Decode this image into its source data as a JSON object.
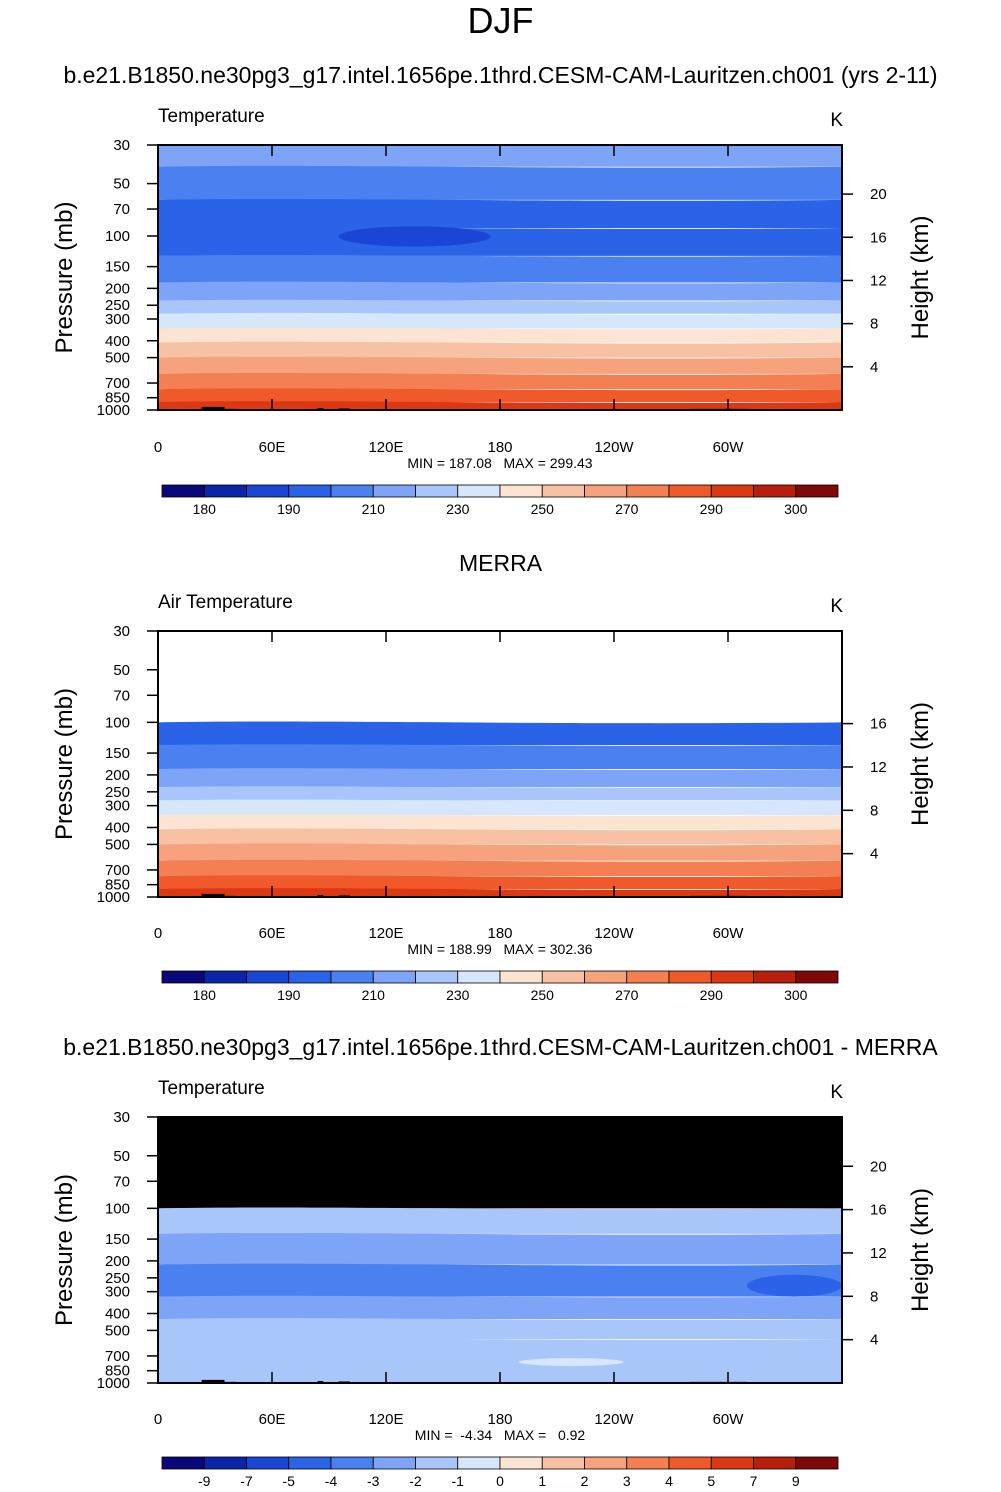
{
  "page": {
    "title": "DJF",
    "case1_title": "b.e21.B1850.ne30pg3_g17.intel.1656pe.1thrd.CESM-CAM-Lauritzen.ch001 (yrs 2-11)",
    "case2_title": "MERRA",
    "diff_title": "b.e21.B1850.ne30pg3_g17.intel.1656pe.1thrd.CESM-CAM-Lauritzen.ch001 - MERRA"
  },
  "colors": {
    "abs_palette": [
      "#08087a",
      "#0a25a8",
      "#1a46d6",
      "#2a62e8",
      "#4a80ef",
      "#7da4f6",
      "#a9c6fb",
      "#d6e6fb",
      "#fbe4d2",
      "#f8c1a4",
      "#f6a27d",
      "#f47f53",
      "#f05a2a",
      "#dd3814",
      "#b71f0c",
      "#7f0808"
    ],
    "diff_palette": [
      "#08087a",
      "#0a25a8",
      "#1a46d6",
      "#2a62e8",
      "#4a80ef",
      "#7da4f6",
      "#a9c6fb",
      "#d6e6fb",
      "#fbe4d2",
      "#f8c1a4",
      "#f6a27d",
      "#f47f53",
      "#f05a2a",
      "#dd3814",
      "#b71f0c",
      "#7f0808"
    ],
    "mask": "#000000"
  },
  "chart_data": [
    {
      "type": "heatmap",
      "panel": "top",
      "left_title": "Temperature",
      "units": "K",
      "ylabel": "Pressure (mb)",
      "right_label": "Height (km)",
      "y_ticks": [
        30,
        50,
        70,
        100,
        150,
        200,
        250,
        300,
        400,
        500,
        700,
        850,
        1000
      ],
      "right_ticks": [
        "20",
        "16",
        "12",
        "8",
        "4"
      ],
      "right_tick_values": [
        20,
        16,
        12,
        8,
        4
      ],
      "x_ticks": [
        "0",
        "60E",
        "120E",
        "180",
        "120W",
        "60W"
      ],
      "xlim": [
        0,
        360
      ],
      "ylim": [
        30,
        1000
      ],
      "stats": "MIN = 187.08   MAX = 299.43",
      "colorbar_labels": [
        "180",
        "190",
        "210",
        "230",
        "250",
        "270",
        "290",
        "300"
      ],
      "levels": [
        {
          "p_top": 30,
          "p_bottom": 40,
          "color_index": 5
        },
        {
          "p_top": 40,
          "p_bottom": 62,
          "color_index": 4
        },
        {
          "p_top": 62,
          "p_bottom": 90,
          "color_index": 3
        },
        {
          "p_top": 90,
          "p_bottom": 130,
          "color_index": 3
        },
        {
          "p_top": 130,
          "p_bottom": 185,
          "color_index": 4
        },
        {
          "p_top": 185,
          "p_bottom": 235,
          "color_index": 5
        },
        {
          "p_top": 235,
          "p_bottom": 280,
          "color_index": 6
        },
        {
          "p_top": 280,
          "p_bottom": 340,
          "color_index": 7
        },
        {
          "p_top": 340,
          "p_bottom": 410,
          "color_index": 8
        },
        {
          "p_top": 410,
          "p_bottom": 500,
          "color_index": 9
        },
        {
          "p_top": 500,
          "p_bottom": 620,
          "color_index": 10
        },
        {
          "p_top": 620,
          "p_bottom": 760,
          "color_index": 11
        },
        {
          "p_top": 760,
          "p_bottom": 900,
          "color_index": 12
        },
        {
          "p_top": 900,
          "p_bottom": 1000,
          "color_index": 13
        }
      ],
      "features": [
        {
          "kind": "cold_core",
          "lon_start": 95,
          "lon_end": 175,
          "p_top": 88,
          "p_bottom": 115,
          "color_index": 2
        }
      ]
    },
    {
      "type": "heatmap",
      "panel": "middle",
      "left_title": "Air Temperature",
      "units": "K",
      "ylabel": "Pressure (mb)",
      "right_label": "Height (km)",
      "y_ticks": [
        30,
        50,
        70,
        100,
        150,
        200,
        250,
        300,
        400,
        500,
        700,
        850,
        1000
      ],
      "right_ticks": [
        "16",
        "12",
        "8",
        "4"
      ],
      "right_tick_values": [
        16,
        12,
        8,
        4
      ],
      "x_ticks": [
        "0",
        "60E",
        "120E",
        "180",
        "120W",
        "60W"
      ],
      "xlim": [
        0,
        360
      ],
      "ylim": [
        30,
        1000
      ],
      "data_top_p": 100,
      "stats": "MIN = 188.99   MAX = 302.36",
      "colorbar_labels": [
        "180",
        "190",
        "210",
        "230",
        "250",
        "270",
        "290",
        "300"
      ],
      "levels": [
        {
          "p_top": 100,
          "p_bottom": 135,
          "color_index": 3
        },
        {
          "p_top": 135,
          "p_bottom": 185,
          "color_index": 4
        },
        {
          "p_top": 185,
          "p_bottom": 235,
          "color_index": 5
        },
        {
          "p_top": 235,
          "p_bottom": 280,
          "color_index": 6
        },
        {
          "p_top": 280,
          "p_bottom": 340,
          "color_index": 7
        },
        {
          "p_top": 340,
          "p_bottom": 410,
          "color_index": 8
        },
        {
          "p_top": 410,
          "p_bottom": 500,
          "color_index": 9
        },
        {
          "p_top": 500,
          "p_bottom": 620,
          "color_index": 10
        },
        {
          "p_top": 620,
          "p_bottom": 760,
          "color_index": 11
        },
        {
          "p_top": 760,
          "p_bottom": 900,
          "color_index": 12
        },
        {
          "p_top": 900,
          "p_bottom": 1000,
          "color_index": 13
        }
      ],
      "features": []
    },
    {
      "type": "heatmap",
      "panel": "bottom",
      "left_title": "Temperature",
      "units": "K",
      "ylabel": "Pressure (mb)",
      "right_label": "Height (km)",
      "y_ticks": [
        30,
        50,
        70,
        100,
        150,
        200,
        250,
        300,
        400,
        500,
        700,
        850,
        1000
      ],
      "right_ticks": [
        "20",
        "16",
        "12",
        "8",
        "4"
      ],
      "right_tick_values": [
        20,
        16,
        12,
        8,
        4
      ],
      "x_ticks": [
        "0",
        "60E",
        "120E",
        "180",
        "120W",
        "60W"
      ],
      "xlim": [
        0,
        360
      ],
      "ylim": [
        30,
        1000
      ],
      "masked_above_p": 100,
      "stats": "MIN =  -4.34   MAX =   0.92",
      "colorbar_labels": [
        "-9",
        "-7",
        "-5",
        "-4",
        "-3",
        "-2",
        "-1",
        "0",
        "1",
        "2",
        "3",
        "4",
        "5",
        "7",
        "9"
      ],
      "levels": [
        {
          "p_top": 100,
          "p_bottom": 140,
          "color_index": 6
        },
        {
          "p_top": 140,
          "p_bottom": 210,
          "color_index": 5
        },
        {
          "p_top": 210,
          "p_bottom": 320,
          "color_index": 4
        },
        {
          "p_top": 320,
          "p_bottom": 430,
          "color_index": 5
        },
        {
          "p_top": 430,
          "p_bottom": 560,
          "color_index": 6
        },
        {
          "p_top": 560,
          "p_bottom": 1000,
          "color_index": 6
        }
      ],
      "features": [
        {
          "kind": "warm_patch",
          "lon_start": 190,
          "lon_end": 245,
          "p_top": 720,
          "p_bottom": 800,
          "color_index": 7
        },
        {
          "kind": "cold_patch",
          "lon_start": 310,
          "lon_end": 360,
          "p_top": 240,
          "p_bottom": 320,
          "color_index": 3
        }
      ]
    }
  ]
}
